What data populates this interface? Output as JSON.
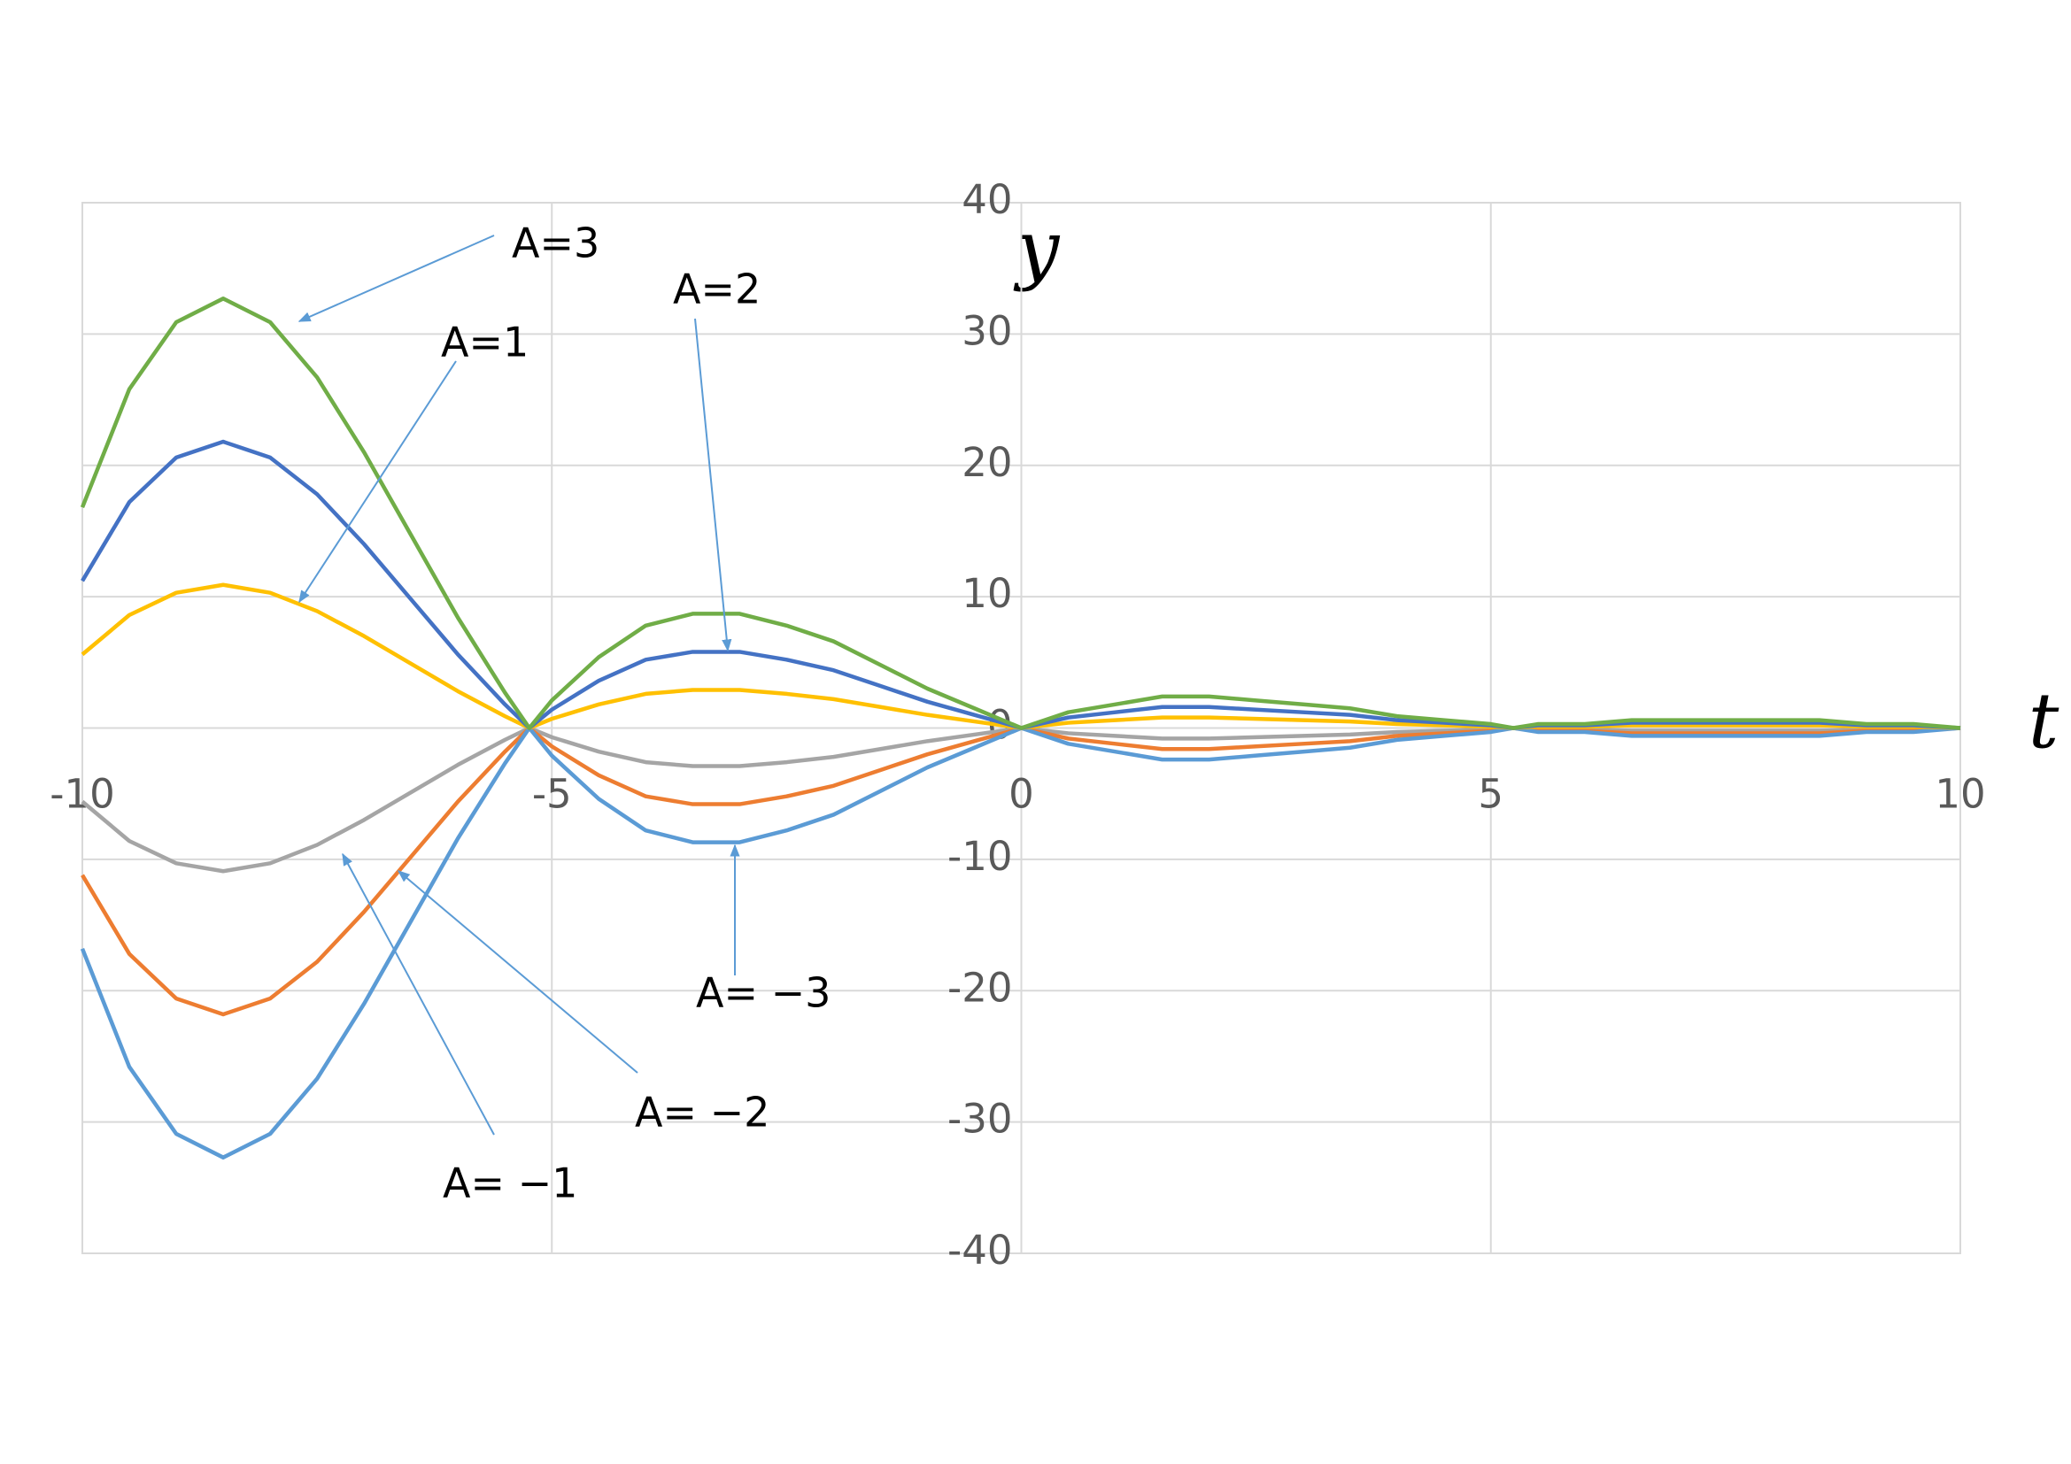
{
  "chart_data": {
    "type": "line",
    "x": [
      -10,
      -9.5,
      -9,
      -8.5,
      -8,
      -7.5,
      -7,
      -6.5,
      -6,
      -5.5,
      -5.24,
      -5,
      -4.5,
      -4,
      -3.5,
      -3,
      -2.5,
      -2,
      -1.5,
      -1,
      -0.5,
      0,
      0.5,
      1,
      1.5,
      2,
      2.5,
      3,
      3.5,
      4,
      4.5,
      5,
      5.24,
      5.5,
      6,
      6.5,
      7,
      7.5,
      8,
      8.5,
      9,
      9.5,
      10
    ],
    "series": [
      {
        "color": "#a5a5a5",
        "values": [
          -5.6,
          -8.6,
          -10.3,
          -10.9,
          -10.3,
          -8.9,
          -7.0,
          -4.9,
          -2.8,
          -0.9,
          0,
          -0.7,
          -1.8,
          -2.6,
          -2.9,
          -2.9,
          -2.6,
          -2.2,
          -1.6,
          -1.0,
          -0.5,
          0,
          -0.4,
          -0.6,
          -0.8,
          -0.8,
          -0.7,
          -0.6,
          -0.5,
          -0.3,
          -0.2,
          -0.1,
          0,
          -0.1,
          -0.1,
          -0.2,
          -0.2,
          -0.2,
          -0.2,
          -0.2,
          -0.1,
          -0.1,
          0
        ]
      },
      {
        "color": "#ed7d31",
        "values": [
          -11.2,
          -17.2,
          -20.6,
          -21.8,
          -20.6,
          -17.8,
          -14.0,
          -9.8,
          -5.6,
          -1.8,
          0,
          -1.4,
          -3.6,
          -5.2,
          -5.8,
          -5.8,
          -5.2,
          -4.4,
          -3.2,
          -2.0,
          -1.0,
          0,
          -0.8,
          -1.2,
          -1.6,
          -1.6,
          -1.4,
          -1.2,
          -1.0,
          -0.6,
          -0.4,
          -0.2,
          0,
          -0.2,
          -0.2,
          -0.4,
          -0.4,
          -0.4,
          -0.4,
          -0.4,
          -0.2,
          -0.2,
          0
        ]
      },
      {
        "color": "#5b9bd5",
        "values": [
          -16.8,
          -25.8,
          -30.9,
          -32.7,
          -30.9,
          -26.7,
          -21.0,
          -14.7,
          -8.4,
          -2.7,
          0,
          -2.1,
          -5.4,
          -7.8,
          -8.7,
          -8.7,
          -7.8,
          -6.6,
          -4.8,
          -3.0,
          -1.5,
          0,
          -1.2,
          -1.8,
          -2.4,
          -2.4,
          -2.1,
          -1.8,
          -1.5,
          -0.9,
          -0.6,
          -0.3,
          0,
          -0.3,
          -0.3,
          -0.6,
          -0.6,
          -0.6,
          -0.6,
          -0.6,
          -0.3,
          -0.3,
          0
        ]
      },
      {
        "color": "#ffc000",
        "values": [
          5.6,
          8.6,
          10.3,
          10.9,
          10.3,
          8.9,
          7.0,
          4.9,
          2.8,
          0.9,
          0,
          0.7,
          1.8,
          2.6,
          2.9,
          2.9,
          2.6,
          2.2,
          1.6,
          1.0,
          0.5,
          0,
          0.4,
          0.6,
          0.8,
          0.8,
          0.7,
          0.6,
          0.5,
          0.3,
          0.2,
          0.1,
          0,
          0.1,
          0.1,
          0.2,
          0.2,
          0.2,
          0.2,
          0.2,
          0.1,
          0.1,
          0
        ]
      },
      {
        "color": "#4472c4",
        "values": [
          11.2,
          17.2,
          20.6,
          21.8,
          20.6,
          17.8,
          14.0,
          9.8,
          5.6,
          1.8,
          0,
          1.4,
          3.6,
          5.2,
          5.8,
          5.8,
          5.2,
          4.4,
          3.2,
          2.0,
          1.0,
          0,
          0.8,
          1.2,
          1.6,
          1.6,
          1.4,
          1.2,
          1.0,
          0.6,
          0.4,
          0.2,
          0,
          0.2,
          0.2,
          0.4,
          0.4,
          0.4,
          0.4,
          0.4,
          0.2,
          0.2,
          0
        ]
      },
      {
        "color": "#70ad47",
        "values": [
          16.8,
          25.8,
          30.9,
          32.7,
          30.9,
          26.7,
          21.0,
          14.7,
          8.4,
          2.7,
          0,
          2.1,
          5.4,
          7.8,
          8.7,
          8.7,
          7.8,
          6.6,
          4.8,
          3.0,
          1.5,
          0,
          1.2,
          1.8,
          2.4,
          2.4,
          2.1,
          1.8,
          1.5,
          0.9,
          0.6,
          0.3,
          0,
          0.3,
          0.3,
          0.6,
          0.6,
          0.6,
          0.6,
          0.6,
          0.3,
          0.3,
          0
        ]
      }
    ],
    "xlim": [
      -10,
      10
    ],
    "xticks": [
      -10,
      -5,
      0,
      5,
      10
    ],
    "ylim": [
      -40,
      40
    ],
    "yticks": [
      -40,
      -30,
      -20,
      -10,
      0,
      10,
      20,
      30,
      40
    ],
    "grid": true,
    "xlabel": "t",
    "ylabel": "y",
    "annotations": [
      "A=3",
      "A=1",
      "A=2",
      "A= −3",
      "A= −2",
      "A= −1"
    ]
  }
}
